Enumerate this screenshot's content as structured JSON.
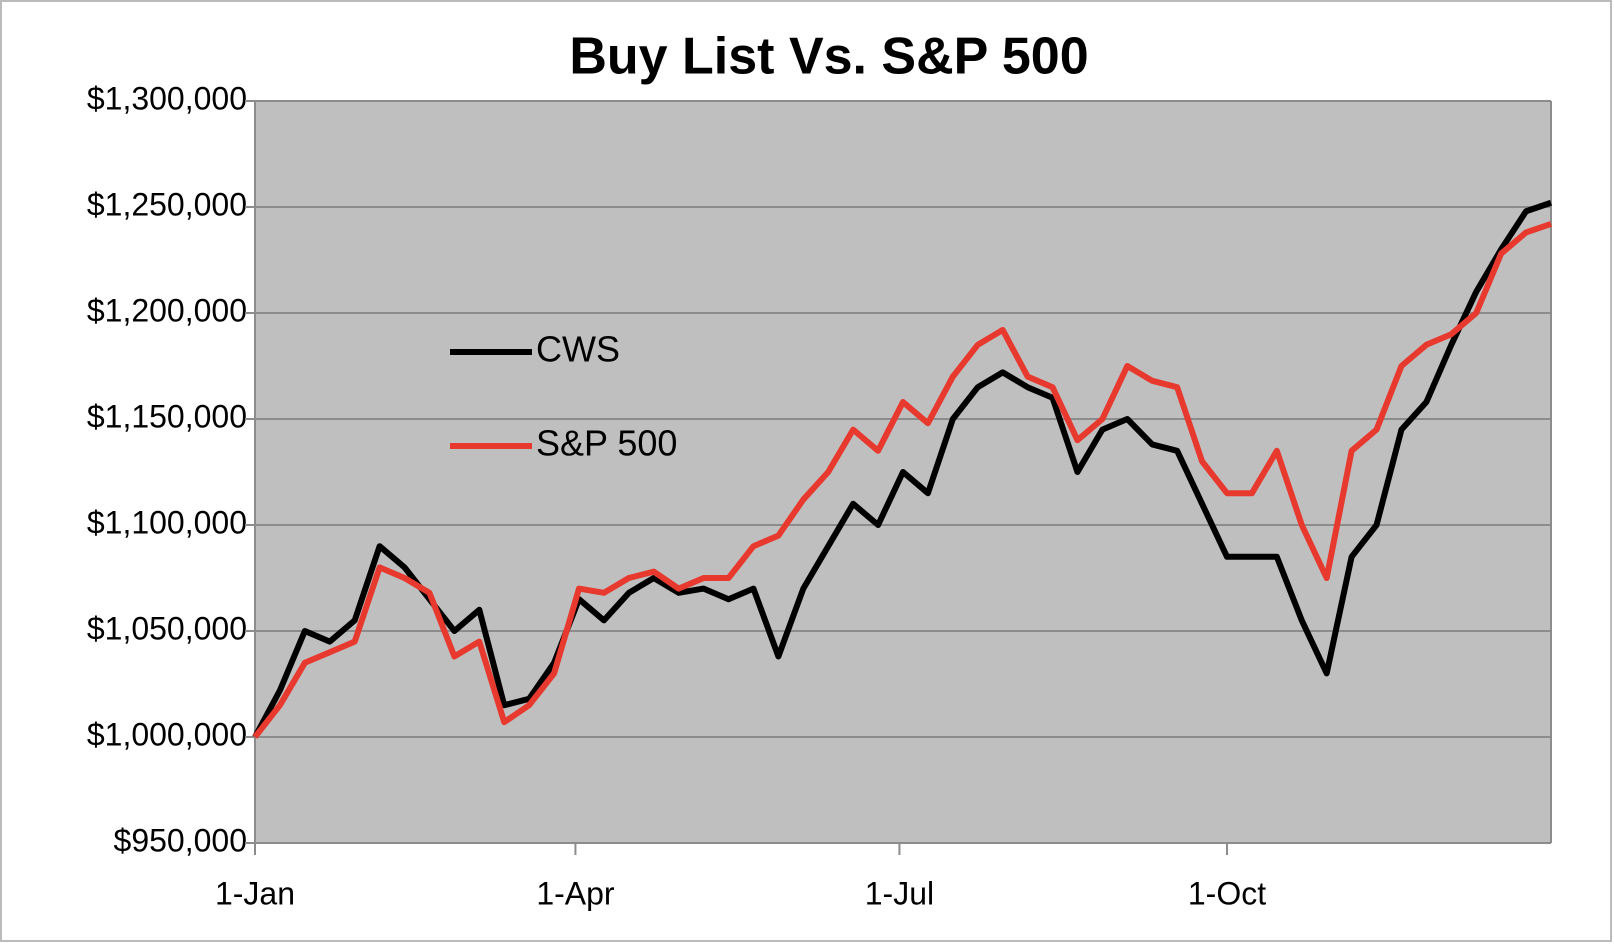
{
  "chart_data": {
    "type": "line",
    "title": "Buy List Vs. S&P 500",
    "x": [
      0,
      7,
      14,
      21,
      28,
      35,
      42,
      49,
      56,
      63,
      70,
      77,
      84,
      91,
      98,
      105,
      112,
      119,
      126,
      133,
      140,
      147,
      154,
      161,
      168,
      175,
      182,
      189,
      196,
      203,
      210,
      217,
      224,
      231,
      238,
      245,
      252,
      259,
      266,
      273,
      280,
      287,
      294,
      301,
      308,
      315,
      322,
      329,
      336,
      343,
      350,
      357,
      364
    ],
    "series": [
      {
        "name": "CWS",
        "color": "#000000",
        "values": [
          1000000,
          1022000,
          1050000,
          1045000,
          1055000,
          1090000,
          1080000,
          1065000,
          1050000,
          1060000,
          1015000,
          1018000,
          1035000,
          1065000,
          1055000,
          1068000,
          1075000,
          1068000,
          1070000,
          1065000,
          1070000,
          1038000,
          1070000,
          1090000,
          1110000,
          1100000,
          1125000,
          1115000,
          1150000,
          1165000,
          1172000,
          1165000,
          1160000,
          1125000,
          1145000,
          1150000,
          1138000,
          1135000,
          1110000,
          1085000,
          1085000,
          1085000,
          1055000,
          1030000,
          1085000,
          1100000,
          1145000,
          1158000,
          1185000,
          1210000,
          1230000,
          1248000,
          1252000
        ]
      },
      {
        "name": "S&P 500",
        "color": "#e8392f",
        "values": [
          1000000,
          1015000,
          1035000,
          1040000,
          1045000,
          1080000,
          1075000,
          1068000,
          1038000,
          1045000,
          1007000,
          1015000,
          1030000,
          1070000,
          1068000,
          1075000,
          1078000,
          1070000,
          1075000,
          1075000,
          1090000,
          1095000,
          1112000,
          1125000,
          1145000,
          1135000,
          1158000,
          1148000,
          1170000,
          1185000,
          1192000,
          1170000,
          1165000,
          1140000,
          1150000,
          1175000,
          1168000,
          1165000,
          1130000,
          1115000,
          1115000,
          1135000,
          1100000,
          1075000,
          1135000,
          1145000,
          1175000,
          1185000,
          1190000,
          1200000,
          1228000,
          1238000,
          1242000
        ]
      }
    ],
    "xlim": [
      0,
      364
    ],
    "xticks": [
      {
        "value": 0,
        "label": "1-Jan"
      },
      {
        "value": 90,
        "label": "1-Apr"
      },
      {
        "value": 181,
        "label": "1-Jul"
      },
      {
        "value": 273,
        "label": "1-Oct"
      }
    ],
    "ylim": [
      950000,
      1300000
    ],
    "yticks": [
      {
        "value": 950000,
        "label": "$950,000"
      },
      {
        "value": 1000000,
        "label": "$1,000,000"
      },
      {
        "value": 1050000,
        "label": "$1,050,000"
      },
      {
        "value": 1100000,
        "label": "$1,100,000"
      },
      {
        "value": 1150000,
        "label": "$1,150,000"
      },
      {
        "value": 1200000,
        "label": "$1,200,000"
      },
      {
        "value": 1250000,
        "label": "$1,250,000"
      },
      {
        "value": 1300000,
        "label": "$1,300,000"
      }
    ],
    "grid": true,
    "legend_position": "upper left"
  }
}
